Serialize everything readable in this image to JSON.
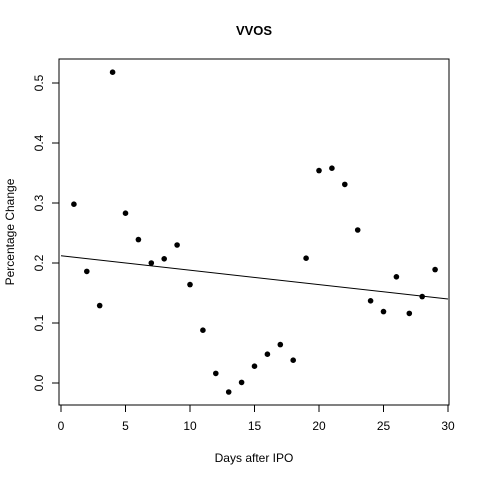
{
  "chart_data": {
    "type": "scatter",
    "title": "VVOS",
    "xlabel": "Days after IPO",
    "ylabel": "Percentage Change",
    "xlim": [
      0,
      30
    ],
    "ylim": [
      -0.04,
      0.54
    ],
    "xticks": [
      0,
      5,
      10,
      15,
      20,
      25,
      30
    ],
    "yticks": [
      0.0,
      0.1,
      0.2,
      0.3,
      0.4,
      0.5
    ],
    "ytick_labels": [
      "0.0",
      "0.1",
      "0.2",
      "0.3",
      "0.4",
      "0.5"
    ],
    "grid": false,
    "series": [
      {
        "x": [
          1,
          2,
          3,
          4,
          5,
          6,
          7,
          8,
          9,
          10,
          11,
          12,
          13,
          14,
          15,
          16,
          17,
          18,
          19,
          20,
          21,
          22,
          23,
          24,
          25,
          26,
          27,
          28,
          29
        ],
        "values": [
          0.298,
          0.186,
          0.129,
          0.518,
          0.283,
          0.239,
          0.2,
          0.207,
          0.23,
          0.164,
          0.088,
          0.016,
          -0.015,
          0.001,
          0.028,
          0.048,
          0.064,
          0.038,
          0.208,
          0.354,
          0.358,
          0.331,
          0.255,
          0.137,
          0.119,
          0.177,
          0.116,
          0.144,
          0.189
        ],
        "color": "#000000"
      }
    ],
    "trend_line": {
      "x": [
        0,
        30
      ],
      "y": [
        0.212,
        0.14
      ],
      "color": "#000000"
    }
  }
}
